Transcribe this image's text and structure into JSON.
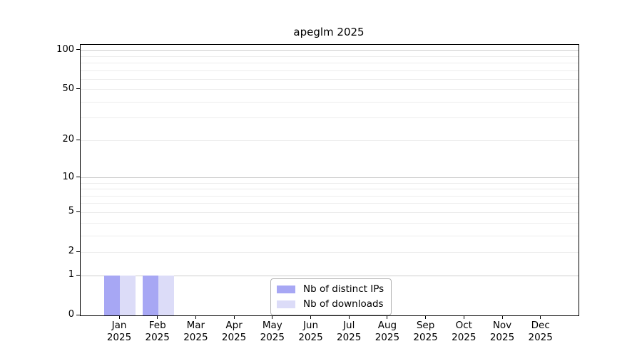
{
  "chart_data": {
    "type": "bar",
    "title": "apeglm 2025",
    "categories": [
      "Jan",
      "Feb",
      "Mar",
      "Apr",
      "May",
      "Jun",
      "Jul",
      "Aug",
      "Sep",
      "Oct",
      "Nov",
      "Dec"
    ],
    "year_label": "2025",
    "series": [
      {
        "name": "Nb of distinct IPs",
        "color": "#a7a7f4",
        "values": [
          1,
          1,
          0,
          0,
          0,
          0,
          0,
          0,
          0,
          0,
          0,
          0
        ]
      },
      {
        "name": "Nb of downloads",
        "color": "#dcdcf8",
        "values": [
          1,
          1,
          0,
          0,
          0,
          0,
          0,
          0,
          0,
          0,
          0,
          0
        ]
      }
    ],
    "xlabel": "",
    "ylabel": "",
    "y_scale": "log1p",
    "ylim": [
      0,
      110
    ],
    "y_ticks": [
      0,
      1,
      2,
      5,
      10,
      20,
      50,
      100
    ],
    "grid": {
      "major_values": [
        1,
        10,
        100
      ],
      "minor_values": [
        2,
        3,
        4,
        5,
        6,
        7,
        8,
        9,
        20,
        30,
        40,
        50,
        60,
        70,
        80,
        90
      ],
      "major_color": "#cccccc",
      "minor_color": "#ececec"
    },
    "legend_position": "bottom-center",
    "axis_color": "#000000"
  }
}
